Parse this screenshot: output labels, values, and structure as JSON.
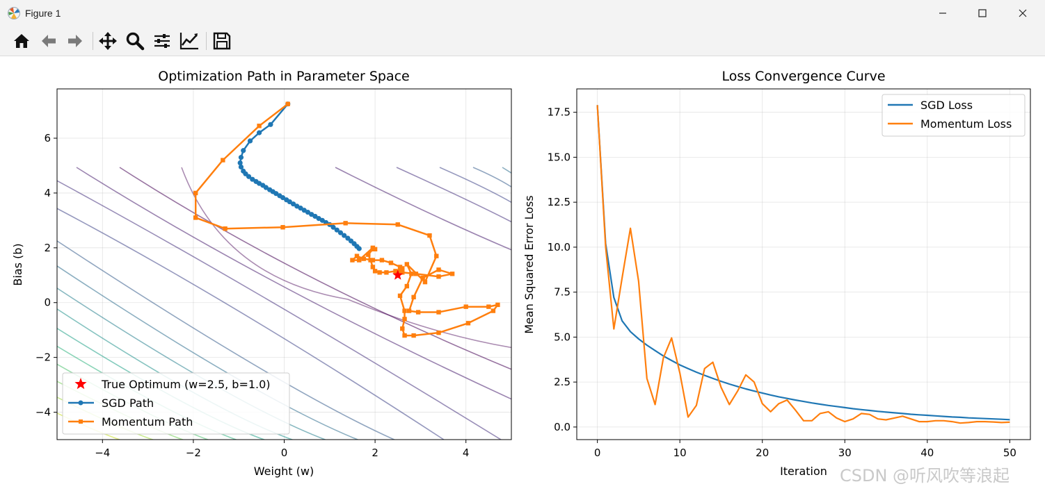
{
  "window": {
    "title": "Figure 1"
  },
  "toolbar": {
    "buttons": [
      "home-icon",
      "back-icon",
      "forward-icon",
      "pan-icon",
      "zoom-icon",
      "configure-subplots-icon",
      "edit-axis-icon",
      "save-icon"
    ]
  },
  "watermark": "CSDN @听风吹等浪起",
  "colors": {
    "blue": "#1f77b4",
    "orange": "#ff7f0e",
    "star": "#ff0000"
  },
  "chart_data": [
    {
      "type": "line",
      "title": "Optimization Path in Parameter Space",
      "xlabel": "Weight (w)",
      "ylabel": "Bias (b)",
      "xlim": [
        -5,
        5
      ],
      "ylim": [
        -5,
        7.8
      ],
      "xticks": [
        -4,
        -2,
        0,
        2,
        4
      ],
      "yticks": [
        -4,
        -2,
        0,
        2,
        4,
        6
      ],
      "xtick_labels": [
        "−4",
        "−2",
        "0",
        "2",
        "4"
      ],
      "ytick_labels": [
        "−4",
        "−2",
        "0",
        "2",
        "4",
        "6"
      ],
      "grid": true,
      "legend_position": "lower-left",
      "legend": [
        "True Optimum (w=2.5, b=1.0)",
        "SGD Path",
        "Momentum Path"
      ],
      "optimum": {
        "w": 2.5,
        "b": 1.0
      },
      "sgd_path": {
        "w": [
          0.08,
          -0.3,
          -0.55,
          -0.75,
          -0.9,
          -0.95,
          -0.97,
          -0.95,
          -0.9,
          -0.85,
          -0.78,
          -0.7,
          -0.62,
          -0.55,
          -0.47,
          -0.4,
          -0.32,
          -0.25,
          -0.18,
          -0.1,
          -0.03,
          0.05,
          0.12,
          0.2,
          0.28,
          0.36,
          0.44,
          0.52,
          0.6,
          0.68,
          0.76,
          0.84,
          0.92,
          1.0,
          1.08,
          1.16,
          1.24,
          1.32,
          1.4,
          1.47,
          1.54,
          1.6,
          1.65
        ],
        "b": [
          7.25,
          6.5,
          6.2,
          5.9,
          5.55,
          5.3,
          5.1,
          4.95,
          4.8,
          4.7,
          4.6,
          4.5,
          4.42,
          4.35,
          4.28,
          4.2,
          4.12,
          4.05,
          3.98,
          3.9,
          3.83,
          3.75,
          3.68,
          3.6,
          3.52,
          3.45,
          3.37,
          3.3,
          3.22,
          3.15,
          3.07,
          3.0,
          2.92,
          2.85,
          2.75,
          2.65,
          2.55,
          2.45,
          2.35,
          2.25,
          2.15,
          2.05,
          1.97
        ]
      },
      "momentum_path": {
        "w": [
          0.08,
          -0.55,
          -1.35,
          -1.95,
          -1.95,
          -1.3,
          -0.03,
          1.35,
          2.5,
          3.2,
          3.35,
          3.1,
          2.7,
          2.8,
          2.7,
          2.55,
          2.65,
          2.65,
          2.6,
          2.65,
          2.85,
          3.4,
          4.05,
          4.6,
          4.7,
          4.5,
          4.0,
          3.4,
          2.95,
          2.75,
          2.85,
          3.05,
          3.4,
          3.7,
          3.4,
          2.9,
          2.6,
          2.6,
          2.55,
          2.45,
          2.25,
          2.1,
          2.0,
          1.95,
          1.9,
          1.85,
          1.95,
          2.0,
          1.95,
          1.65,
          1.5,
          1.6,
          1.75,
          1.95,
          2.15,
          2.35,
          2.55
        ],
        "b": [
          7.25,
          6.45,
          5.2,
          4.0,
          3.1,
          2.7,
          2.75,
          2.9,
          2.85,
          2.45,
          1.7,
          0.75,
          1.4,
          1.05,
          0.6,
          0.25,
          -0.3,
          -0.6,
          -0.95,
          -1.2,
          -1.2,
          -1.1,
          -0.75,
          -0.3,
          -0.08,
          -0.15,
          -0.15,
          -0.35,
          -0.35,
          -0.3,
          0.2,
          0.9,
          1.2,
          1.05,
          0.95,
          1.05,
          1.1,
          1.25,
          1.15,
          1.15,
          1.1,
          1.1,
          1.15,
          1.3,
          1.55,
          1.75,
          1.95,
          1.95,
          2.0,
          1.55,
          1.55,
          1.7,
          1.6,
          1.55,
          1.55,
          1.45,
          1.3
        ]
      }
    },
    {
      "type": "line",
      "title": "Loss Convergence Curve",
      "xlabel": "Iteration",
      "ylabel": "Mean Squared Error Loss",
      "xlim": [
        -2.5,
        52.5
      ],
      "ylim": [
        -0.7,
        18.8
      ],
      "xticks": [
        0,
        10,
        20,
        30,
        40,
        50
      ],
      "yticks": [
        0.0,
        2.5,
        5.0,
        7.5,
        10.0,
        12.5,
        15.0,
        17.5
      ],
      "xtick_labels": [
        "0",
        "10",
        "20",
        "30",
        "40",
        "50"
      ],
      "ytick_labels": [
        "0.0",
        "2.5",
        "5.0",
        "7.5",
        "10.0",
        "12.5",
        "15.0",
        "17.5"
      ],
      "grid": true,
      "legend_position": "top-right",
      "x": [
        0,
        1,
        2,
        3,
        4,
        5,
        6,
        7,
        8,
        9,
        10,
        11,
        12,
        13,
        14,
        15,
        16,
        17,
        18,
        19,
        20,
        21,
        22,
        23,
        24,
        25,
        26,
        27,
        28,
        29,
        30,
        31,
        32,
        33,
        34,
        35,
        36,
        37,
        38,
        39,
        40,
        41,
        42,
        43,
        44,
        45,
        46,
        47,
        48,
        49,
        50
      ],
      "series": [
        {
          "name": "SGD Loss",
          "values": [
            17.9,
            10.2,
            7.2,
            5.9,
            5.3,
            4.9,
            4.55,
            4.25,
            3.95,
            3.7,
            3.45,
            3.25,
            3.05,
            2.87,
            2.7,
            2.54,
            2.39,
            2.25,
            2.12,
            2.0,
            1.89,
            1.78,
            1.68,
            1.59,
            1.5,
            1.42,
            1.34,
            1.27,
            1.2,
            1.14,
            1.08,
            1.02,
            0.97,
            0.92,
            0.87,
            0.83,
            0.79,
            0.75,
            0.71,
            0.68,
            0.65,
            0.62,
            0.59,
            0.56,
            0.54,
            0.51,
            0.49,
            0.47,
            0.45,
            0.43,
            0.41
          ]
        },
        {
          "name": "Momentum Loss",
          "values": [
            17.9,
            10.0,
            5.45,
            8.3,
            11.05,
            8.1,
            2.7,
            1.25,
            3.85,
            4.95,
            3.0,
            0.55,
            1.2,
            3.25,
            3.6,
            2.2,
            1.25,
            2.0,
            2.9,
            2.5,
            1.3,
            0.85,
            1.3,
            1.5,
            0.95,
            0.35,
            0.35,
            0.75,
            0.85,
            0.5,
            0.3,
            0.45,
            0.75,
            0.7,
            0.45,
            0.4,
            0.5,
            0.6,
            0.45,
            0.3,
            0.3,
            0.35,
            0.35,
            0.3,
            0.22,
            0.25,
            0.3,
            0.3,
            0.28,
            0.25,
            0.27
          ]
        }
      ]
    }
  ]
}
